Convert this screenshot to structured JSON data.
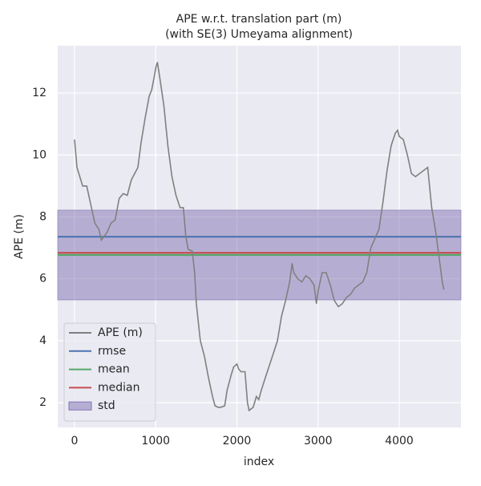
{
  "chart_data": {
    "type": "line",
    "title": "APE w.r.t. translation part (m)",
    "subtitle": "(with SE(3) Umeyama alignment)",
    "xlabel": "index",
    "ylabel": "APE (m)",
    "xlim": [
      -207,
      4760
    ],
    "ylim": [
      1.2,
      13.53
    ],
    "xticks": [
      0,
      1000,
      2000,
      3000,
      4000
    ],
    "yticks": [
      2,
      4,
      6,
      8,
      10,
      12
    ],
    "grid": true,
    "legend": "lower left",
    "series": [
      {
        "name": "APE (m)",
        "color": "#808080",
        "x": [
          0,
          30,
          100,
          150,
          200,
          250,
          300,
          330,
          400,
          450,
          500,
          550,
          600,
          650,
          700,
          780,
          820,
          870,
          920,
          950,
          980,
          1000,
          1020,
          1050,
          1100,
          1150,
          1200,
          1250,
          1300,
          1340,
          1370,
          1400,
          1450,
          1480,
          1500,
          1550,
          1600,
          1650,
          1700,
          1730,
          1770,
          1800,
          1850,
          1880,
          1930,
          1960,
          2000,
          2020,
          2050,
          2100,
          2130,
          2150,
          2200,
          2240,
          2270,
          2300,
          2350,
          2400,
          2450,
          2500,
          2550,
          2600,
          2650,
          2680,
          2700,
          2750,
          2800,
          2850,
          2900,
          2950,
          2980,
          3000,
          3050,
          3100,
          3150,
          3200,
          3250,
          3300,
          3350,
          3400,
          3450,
          3500,
          3550,
          3600,
          3650,
          3700,
          3750,
          3800,
          3850,
          3900,
          3950,
          3980,
          4000,
          4050,
          4100,
          4150,
          4200,
          4250,
          4300,
          4350,
          4400,
          4450,
          4500,
          4530,
          4550
        ],
        "values": [
          10.5,
          9.6,
          9.0,
          9.0,
          8.4,
          7.8,
          7.6,
          7.25,
          7.5,
          7.8,
          7.9,
          8.6,
          8.75,
          8.7,
          9.2,
          9.6,
          10.4,
          11.2,
          11.9,
          12.1,
          12.5,
          12.8,
          13.0,
          12.5,
          11.6,
          10.3,
          9.3,
          8.7,
          8.3,
          8.3,
          7.4,
          6.95,
          6.9,
          6.2,
          5.2,
          4.0,
          3.5,
          2.8,
          2.2,
          1.9,
          1.85,
          1.85,
          1.9,
          2.4,
          2.9,
          3.15,
          3.25,
          3.1,
          3.0,
          3.0,
          2.0,
          1.75,
          1.85,
          2.2,
          2.1,
          2.4,
          2.8,
          3.2,
          3.6,
          4.0,
          4.8,
          5.3,
          5.9,
          6.5,
          6.2,
          6.0,
          5.9,
          6.1,
          6.0,
          5.8,
          5.2,
          5.6,
          6.2,
          6.2,
          5.8,
          5.3,
          5.1,
          5.2,
          5.4,
          5.5,
          5.7,
          5.8,
          5.9,
          6.2,
          7.0,
          7.3,
          7.6,
          8.5,
          9.5,
          10.3,
          10.7,
          10.8,
          10.6,
          10.5,
          10.0,
          9.4,
          9.3,
          9.4,
          9.5,
          9.6,
          8.3,
          7.5,
          6.5,
          5.9,
          5.65
        ]
      }
    ],
    "stats": [
      {
        "name": "rmse",
        "color": "#4c72b0",
        "value": 7.36
      },
      {
        "name": "mean",
        "color": "#55a868",
        "value": 6.77
      },
      {
        "name": "median",
        "color": "#c44e52",
        "value": 6.84
      }
    ],
    "std": {
      "name": "std",
      "color": "#8172b2",
      "value": 1.45
    }
  }
}
